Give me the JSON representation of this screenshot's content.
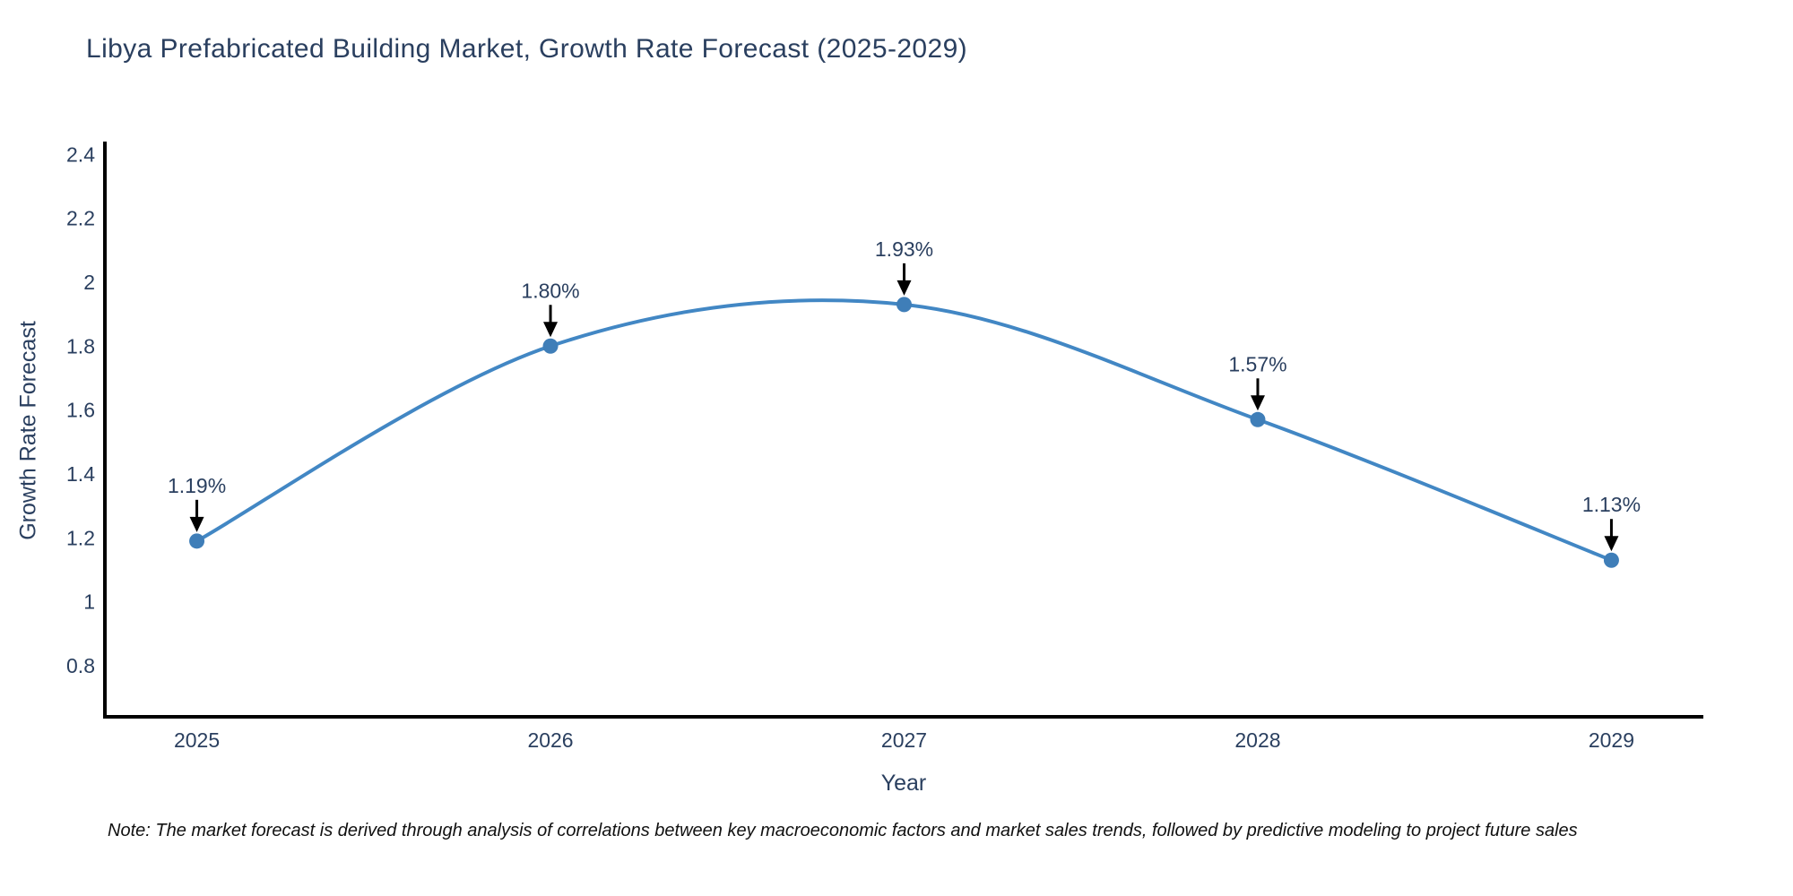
{
  "title": "Libya Prefabricated Building Market, Growth Rate Forecast (2025-2029)",
  "note": "Note: The market forecast is derived through analysis of correlations between key macroeconomic factors and market sales trends, followed by predictive modeling to project future sales",
  "colors": {
    "background": "#ffffff",
    "title_text": "#2a3f5f",
    "tick_text": "#2a3f5f",
    "annotation_text": "#2a3f5f",
    "axis_line": "#000000",
    "line": "#4287c4",
    "marker": "#3f7eb8",
    "arrow": "#000000"
  },
  "chart_data": {
    "type": "line",
    "line_shape": "spline",
    "title": "Libya Prefabricated Building Market, Growth Rate Forecast (2025-2029)",
    "xlabel": "Year",
    "ylabel": "Growth Rate Forecast",
    "x": [
      2025,
      2026,
      2027,
      2028,
      2029
    ],
    "categories": [
      "2025",
      "2026",
      "2027",
      "2028",
      "2029"
    ],
    "values": [
      1.19,
      1.8,
      1.93,
      1.57,
      1.13
    ],
    "point_labels": [
      "1.19%",
      "1.80%",
      "1.93%",
      "1.57%",
      "1.13%"
    ],
    "series_name": "Growth Rate Forecast",
    "xlim": [
      2024.74,
      2029.26
    ],
    "ylim": [
      0.64,
      2.44
    ],
    "yticks": [
      0.8,
      1,
      1.2,
      1.4,
      1.6,
      1.8,
      2,
      2.2,
      2.4
    ],
    "ytick_labels": [
      "0.8",
      "1",
      "1.2",
      "1.4",
      "1.6",
      "1.8",
      "2",
      "2.2",
      "2.4"
    ],
    "grid": false,
    "legend_position": "none",
    "annotations_have_arrows": true
  }
}
